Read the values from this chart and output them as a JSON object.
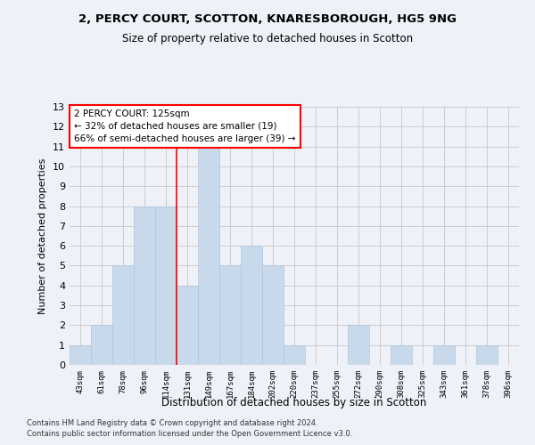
{
  "title1": "2, PERCY COURT, SCOTTON, KNARESBOROUGH, HG5 9NG",
  "title2": "Size of property relative to detached houses in Scotton",
  "xlabel": "Distribution of detached houses by size in Scotton",
  "ylabel": "Number of detached properties",
  "bar_labels": [
    "43sqm",
    "61sqm",
    "78sqm",
    "96sqm",
    "114sqm",
    "131sqm",
    "149sqm",
    "167sqm",
    "184sqm",
    "202sqm",
    "220sqm",
    "237sqm",
    "255sqm",
    "272sqm",
    "290sqm",
    "308sqm",
    "325sqm",
    "343sqm",
    "361sqm",
    "378sqm",
    "396sqm"
  ],
  "bar_values": [
    1,
    2,
    5,
    8,
    8,
    4,
    11,
    5,
    6,
    5,
    1,
    0,
    0,
    2,
    0,
    1,
    0,
    1,
    0,
    1,
    0
  ],
  "bar_color": "#c9d9ec",
  "bar_edge_color": "#aec6de",
  "vline_x": 4.5,
  "annotation_text": "2 PERCY COURT: 125sqm\n← 32% of detached houses are smaller (19)\n66% of semi-detached houses are larger (39) →",
  "annotation_box_color": "white",
  "annotation_box_edge_color": "red",
  "vline_color": "red",
  "ylim": [
    0,
    13
  ],
  "yticks": [
    0,
    1,
    2,
    3,
    4,
    5,
    6,
    7,
    8,
    9,
    10,
    11,
    12,
    13
  ],
  "grid_color": "#cccccc",
  "footer_line1": "Contains HM Land Registry data © Crown copyright and database right 2024.",
  "footer_line2": "Contains public sector information licensed under the Open Government Licence v3.0.",
  "background_color": "#eef2f8",
  "plot_bg_color": "#eef2f8"
}
